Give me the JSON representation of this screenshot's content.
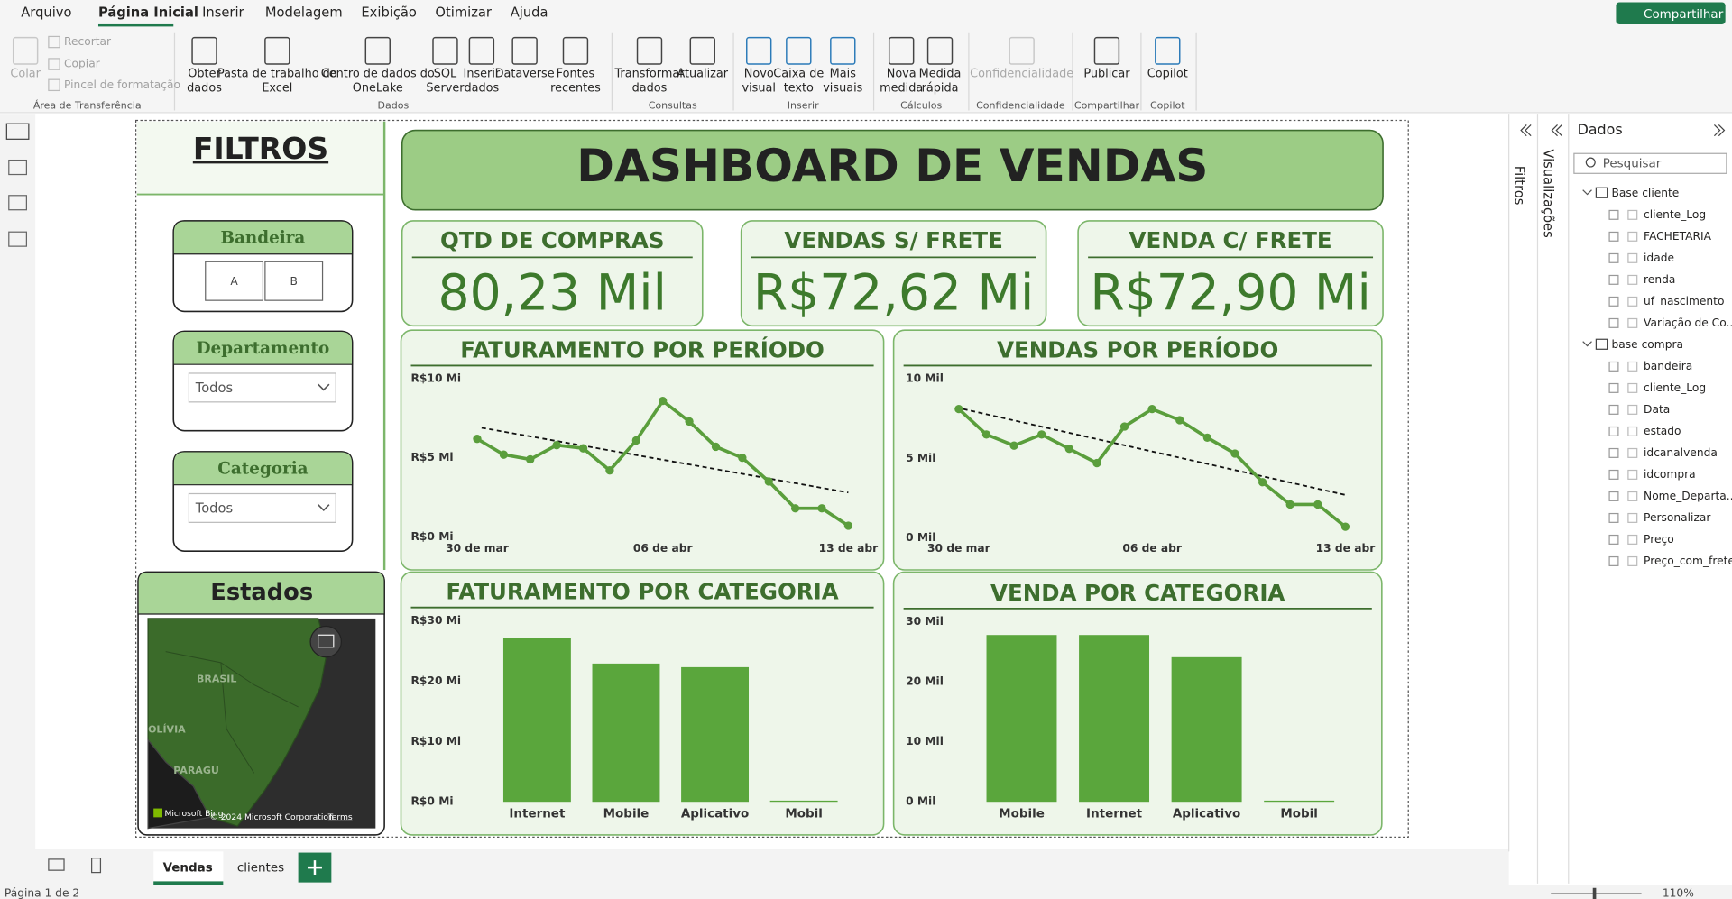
{
  "menu": [
    "Arquivo",
    "Página Inicial",
    "Inserir",
    "Modelagem",
    "Exibição",
    "Otimizar",
    "Ajuda"
  ],
  "share": "Compartilhar",
  "ribbon": [
    {
      "label": "Área de Transferência",
      "items": [
        [
          "Colar"
        ],
        [
          "Recortar"
        ],
        [
          "Copiar"
        ],
        [
          "Pincel de formatação"
        ]
      ]
    },
    {
      "label": "Dados",
      "items": [
        [
          "Obter",
          "dados"
        ],
        [
          "Pasta de trabalho do",
          "Excel"
        ],
        [
          "Centro de dados do",
          "OneLake"
        ],
        [
          "SQL",
          "Server"
        ],
        [
          "Inserir",
          "dados"
        ],
        [
          "Dataverse"
        ],
        [
          "Fontes",
          "recentes"
        ]
      ]
    },
    {
      "label": "Consultas",
      "items": [
        [
          "Transformar",
          "dados"
        ],
        [
          "Atualizar"
        ]
      ]
    },
    {
      "label": "Inserir",
      "items": [
        [
          "Novo",
          "visual"
        ],
        [
          "Caixa de",
          "texto"
        ],
        [
          "Mais",
          "visuais"
        ]
      ]
    },
    {
      "label": "Cálculos",
      "items": [
        [
          "Nova",
          "medida"
        ],
        [
          "Medida",
          "rápida"
        ]
      ]
    },
    {
      "label": "Confidencialidade",
      "items": [
        [
          "Confidencialidade"
        ]
      ]
    },
    {
      "label": "Compartilhar",
      "items": [
        [
          "Publicar"
        ]
      ]
    },
    {
      "label": "Copilot",
      "items": [
        [
          "Copilot"
        ]
      ]
    }
  ],
  "report": {
    "filters_title": "FILTROS",
    "slicers": [
      {
        "title": "Bandeira",
        "options": [
          "A",
          "B"
        ]
      },
      {
        "title": "Departamento",
        "value": "Todos"
      },
      {
        "title": "Categoria",
        "value": "Todos"
      }
    ],
    "map": {
      "title": "Estados",
      "labels": [
        "BRASIL",
        "OLÍVIA",
        "PARAGU"
      ],
      "brand": "Microsoft Bing",
      "copyright": "© 2024 Microsoft Corporation",
      "terms": "Terms"
    },
    "title": "DASHBOARD DE VENDAS",
    "kpis": [
      {
        "label": "QTD DE COMPRAS",
        "value": "80,23 Mil"
      },
      {
        "label": "VENDAS S/ FRETE",
        "value": "R$72,62 Mi"
      },
      {
        "label": "VENDA C/ FRETE",
        "value": "R$72,90 Mi"
      }
    ],
    "charts": [
      {
        "type": "line",
        "title": "FATURAMENTO POR PERÍODO",
        "color": "#5a9e3c",
        "categories": [
          "30 de mar",
          null,
          null,
          null,
          null,
          null,
          null,
          "06 de abr",
          null,
          null,
          null,
          null,
          null,
          null,
          "13 de abr"
        ],
        "values": [
          6.2,
          5.2,
          4.9,
          5.8,
          5.6,
          4.2,
          6.1,
          8.6,
          7.3,
          5.7,
          5.0,
          3.5,
          1.8,
          1.8,
          0.7
        ],
        "trend": [
          6.9,
          2.8
        ],
        "ylim": [
          0,
          10
        ],
        "yticks": [
          {
            "value": 0,
            "label": "R$0 Mi"
          },
          {
            "value": 5,
            "label": "R$5 Mi"
          },
          {
            "value": 10,
            "label": "R$10 Mi"
          }
        ]
      },
      {
        "type": "line",
        "title": "VENDAS POR PERÍODO",
        "color": "#5a9e3c",
        "categories": [
          "30 de mar",
          null,
          null,
          null,
          null,
          null,
          null,
          "06 de abr",
          null,
          null,
          null,
          null,
          null,
          null,
          "13 de abr"
        ],
        "values": [
          8.1,
          6.5,
          5.8,
          6.5,
          5.6,
          4.7,
          7.0,
          8.1,
          7.4,
          6.3,
          5.3,
          3.5,
          2.1,
          2.1,
          0.7
        ],
        "trend": [
          8.1,
          2.7
        ],
        "ylim": [
          0,
          10
        ],
        "yticks": [
          {
            "value": 0,
            "label": "0 Mil"
          },
          {
            "value": 5,
            "label": "5 Mil"
          },
          {
            "value": 10,
            "label": "10 Mil"
          }
        ]
      },
      {
        "type": "bar",
        "title": "FATURAMENTO POR CATEGORIA",
        "color": "#5aa63c",
        "categories": [
          "Internet",
          "Mobile",
          "Aplicativo",
          "Mobil"
        ],
        "values": [
          27.1,
          22.9,
          22.3,
          0.2
        ],
        "ylim": [
          0,
          30
        ],
        "yticks": [
          {
            "value": 0,
            "label": "R$0 Mi"
          },
          {
            "value": 10,
            "label": "R$10 Mi"
          },
          {
            "value": 20,
            "label": "R$20 Mi"
          },
          {
            "value": 30,
            "label": "R$30 Mi"
          }
        ]
      },
      {
        "type": "bar",
        "title": "VENDA POR CATEGORIA",
        "color": "#5aa63c",
        "categories": [
          "Mobile",
          "Internet",
          "Aplicativo",
          "Mobil"
        ],
        "values": [
          27.8,
          27.8,
          24.1,
          0.2
        ],
        "ylim": [
          0,
          30
        ],
        "yticks": [
          {
            "value": 0,
            "label": "0 Mil"
          },
          {
            "value": 10,
            "label": "10 Mil"
          },
          {
            "value": 20,
            "label": "20 Mil"
          },
          {
            "value": 30,
            "label": "30 Mil"
          }
        ]
      }
    ]
  },
  "panes": {
    "filters": "Filtros",
    "visualizations": "Visualizações",
    "data": "Dados",
    "search": "Pesquisar",
    "tables": [
      {
        "name": "Base cliente",
        "fields": [
          "cliente_Log",
          "FACHETARIA",
          "idade",
          "renda",
          "uf_nascimento",
          "Variação de Co..."
        ]
      },
      {
        "name": "base compra",
        "fields": [
          "bandeira",
          "cliente_Log",
          "Data",
          "estado",
          "idcanalvenda",
          "idcompra",
          "Nome_Departa...",
          "Personalizar",
          "Preço",
          "Preço_com_frete"
        ]
      }
    ]
  },
  "tabs": [
    "Vendas",
    "clientes"
  ],
  "status": {
    "page": "Página 1 de 2",
    "zoom": "110%"
  }
}
